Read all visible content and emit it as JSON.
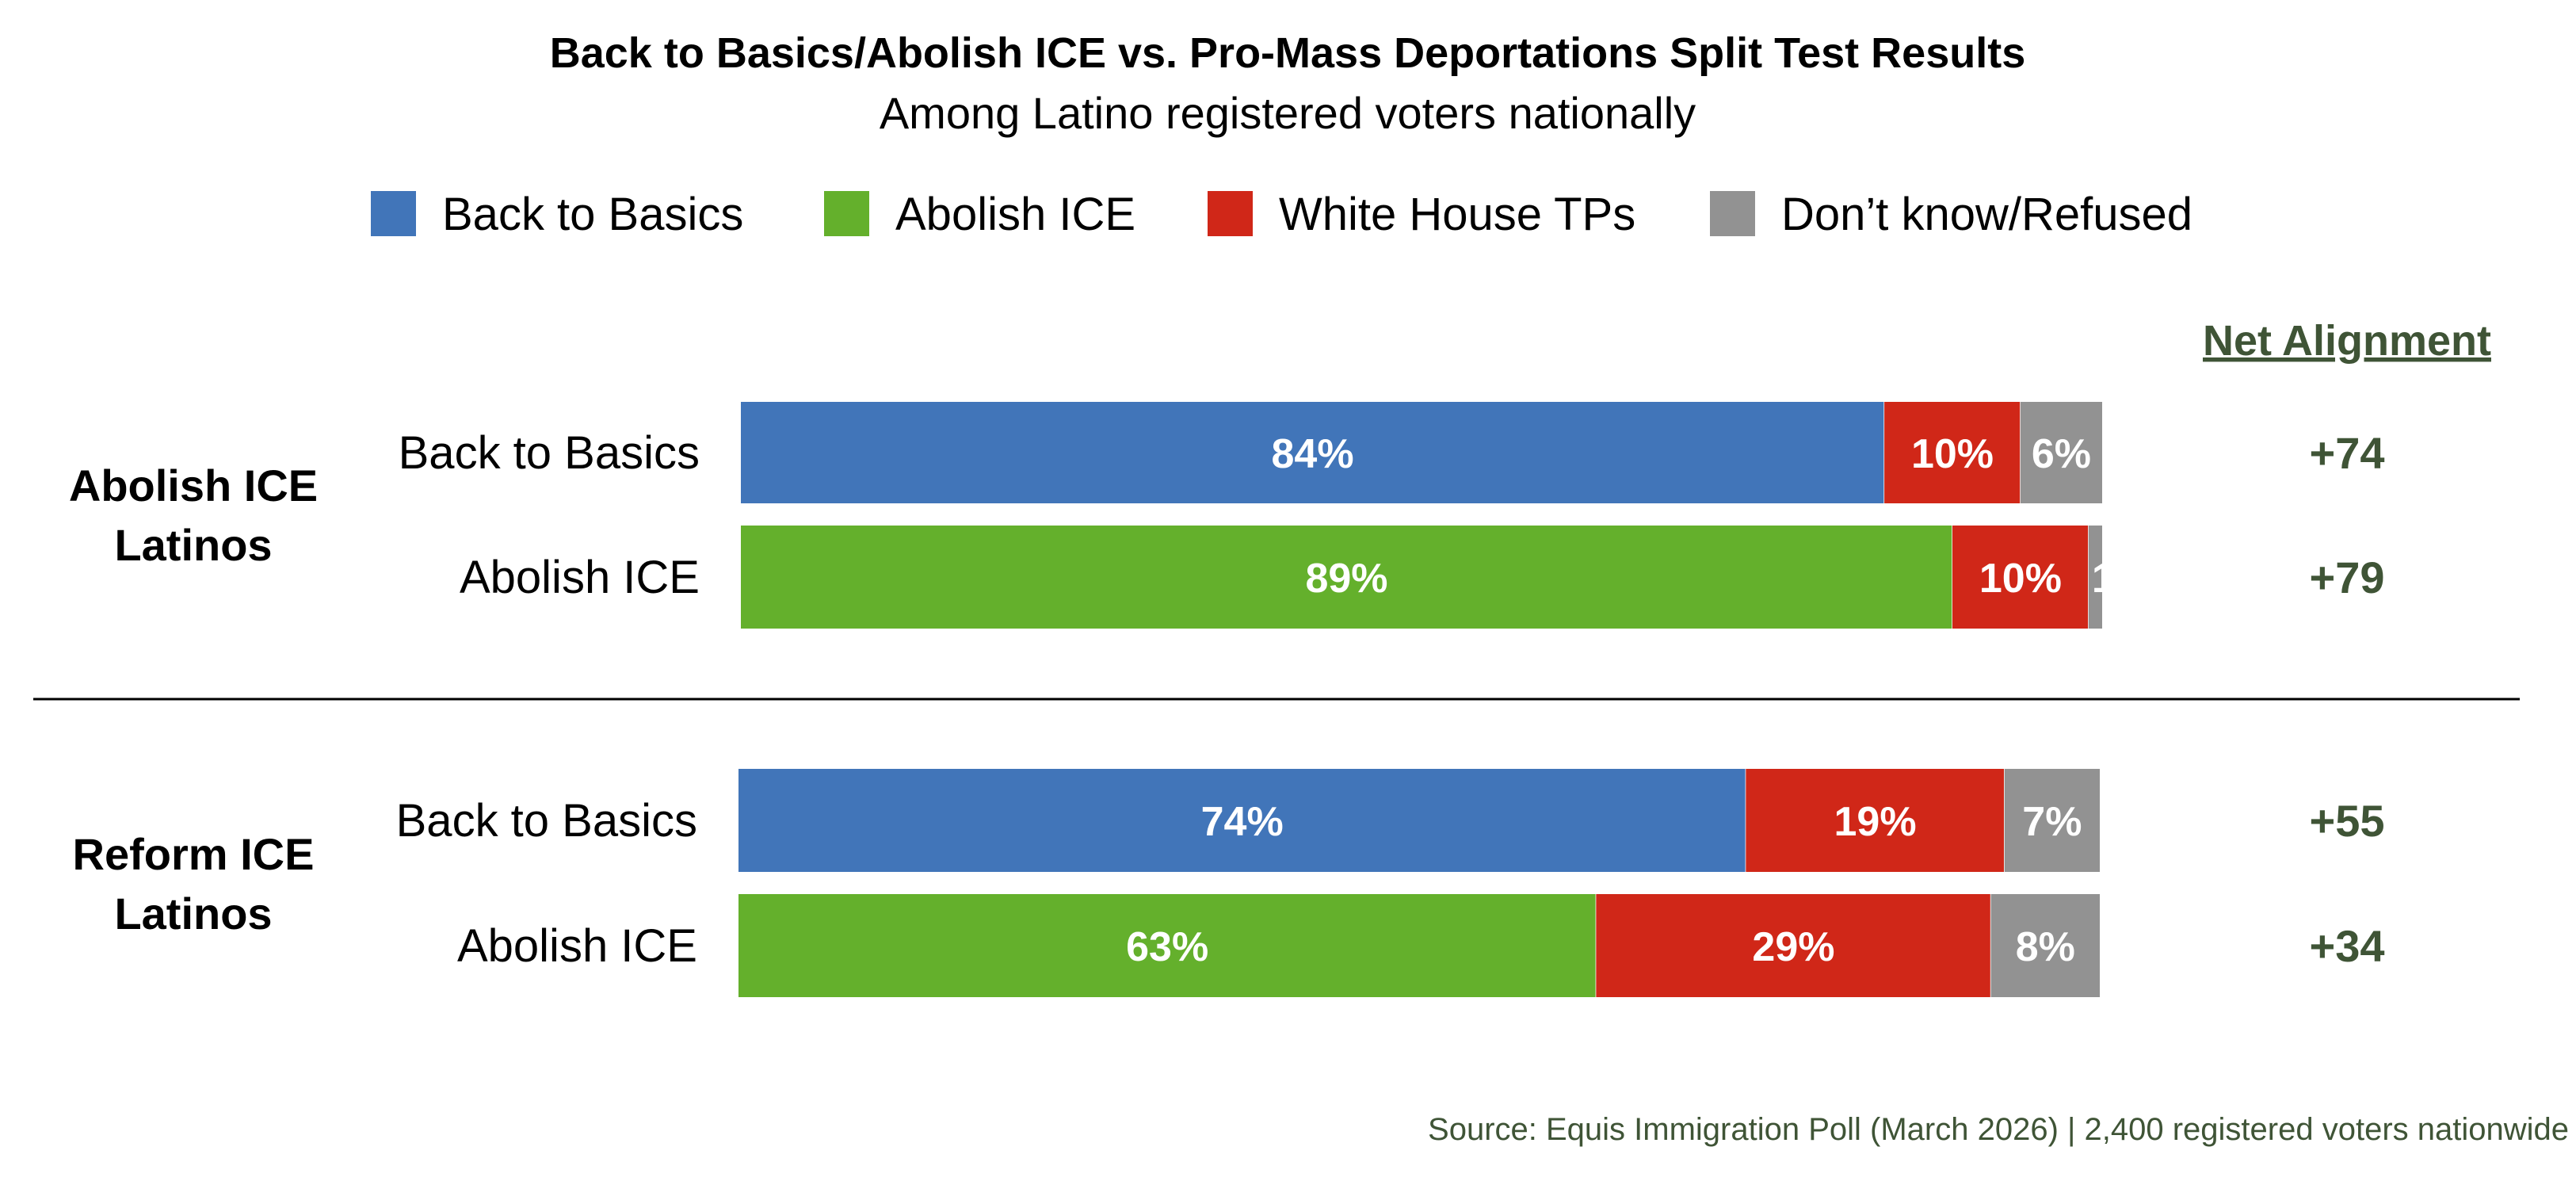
{
  "chart_data": {
    "type": "bar",
    "stacked": true,
    "orientation": "horizontal",
    "title": "Back to Basics/Abolish ICE vs. Pro-Mass Deportations Split Test Results",
    "subtitle": "Among Latino registered voters nationally",
    "legend": [
      {
        "key": "back_to_basics",
        "label": "Back to Basics",
        "color": "#4175b9"
      },
      {
        "key": "abolish_ice",
        "label": "Abolish ICE",
        "color": "#64b02c"
      },
      {
        "key": "white_house",
        "label": "White House TPs",
        "color": "#d02718"
      },
      {
        "key": "dont_know",
        "label": "Don’t know/Refused",
        "color": "#929292"
      }
    ],
    "net_header": "Net Alignment",
    "groups": [
      {
        "label_lines": [
          "Abolish ICE",
          "Latinos"
        ],
        "rows": [
          {
            "label": "Back to Basics",
            "segments": [
              {
                "value": 84,
                "label": "84%",
                "color": "#4175b9"
              },
              {
                "value": 10,
                "label": "10%",
                "color": "#d02718"
              },
              {
                "value": 6,
                "label": "6%",
                "color": "#929292"
              }
            ],
            "net": "+74"
          },
          {
            "label": "Abolish ICE",
            "segments": [
              {
                "value": 89,
                "label": "89%",
                "color": "#64b02c"
              },
              {
                "value": 10,
                "label": "10%",
                "color": "#d02718"
              },
              {
                "value": 1,
                "label": "1",
                "color": "#929292"
              }
            ],
            "net": "+79"
          }
        ]
      },
      {
        "label_lines": [
          "Reform ICE",
          "Latinos"
        ],
        "rows": [
          {
            "label": "Back to Basics",
            "segments": [
              {
                "value": 74,
                "label": "74%",
                "color": "#4175b9"
              },
              {
                "value": 19,
                "label": "19%",
                "color": "#d02718"
              },
              {
                "value": 7,
                "label": "7%",
                "color": "#929292"
              }
            ],
            "net": "+55"
          },
          {
            "label": "Abolish ICE",
            "segments": [
              {
                "value": 63,
                "label": "63%",
                "color": "#64b02c"
              },
              {
                "value": 29,
                "label": "29%",
                "color": "#d02718"
              },
              {
                "value": 8,
                "label": "8%",
                "color": "#929292"
              }
            ],
            "net": "+34"
          }
        ]
      }
    ],
    "xlim": [
      0,
      100
    ],
    "source": "Source: Equis Immigration Poll (March 2026) | 2,400 registered voters nationwide",
    "colors": {
      "net_text": "#3f5436",
      "source_text": "#3f5436",
      "divider": "#000000",
      "bar_label": "#ffffff"
    }
  }
}
